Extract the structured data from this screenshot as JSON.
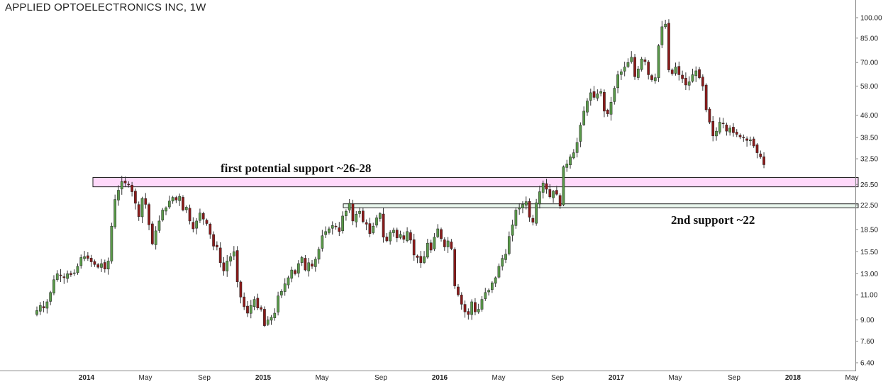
{
  "chart_data": {
    "type": "candlestick",
    "title": "APPLIED OPTOELECTRONICS INC, 1W",
    "y_scale": "log",
    "ylim": [
      6.0,
      110.0
    ],
    "grid": false,
    "y_ticks": [
      "100.00",
      "85.00",
      "70.00",
      "58.00",
      "46.00",
      "38.50",
      "32.50",
      "26.50",
      "22.50",
      "18.50",
      "15.50",
      "13.00",
      "11.00",
      "9.00",
      "7.60",
      "6.40"
    ],
    "x_ticks": [
      {
        "label": "2014",
        "year": true
      },
      {
        "label": "May",
        "year": false
      },
      {
        "label": "Sep",
        "year": false
      },
      {
        "label": "2015",
        "year": true
      },
      {
        "label": "May",
        "year": false
      },
      {
        "label": "Sep",
        "year": false
      },
      {
        "label": "2016",
        "year": true
      },
      {
        "label": "May",
        "year": false
      },
      {
        "label": "Sep",
        "year": false
      },
      {
        "label": "2017",
        "year": true
      },
      {
        "label": "May",
        "year": false
      },
      {
        "label": "Sep",
        "year": false
      },
      {
        "label": "2018",
        "year": true
      },
      {
        "label": "May",
        "year": false
      }
    ],
    "up_color": "#5a9a4a",
    "down_color": "#8b1a1a",
    "support_zones": [
      {
        "label": "first potential support ~26-28",
        "low": 26.0,
        "high": 28.0,
        "fill": "#ffd9fa"
      },
      {
        "label": "2nd support ~22",
        "low": 22.0,
        "high": 22.7,
        "fill": "#e8f5ec"
      }
    ],
    "weekly_closes": [
      9.7,
      10.1,
      9.9,
      10.4,
      11.2,
      12.4,
      13.0,
      12.8,
      12.6,
      13.0,
      12.9,
      13.1,
      13.8,
      14.8,
      14.9,
      14.7,
      14.3,
      14.0,
      13.7,
      14.1,
      13.5,
      14.4,
      19.0,
      23.5,
      25.3,
      27.1,
      26.8,
      26.5,
      25.0,
      22.8,
      20.5,
      23.7,
      22.6,
      19.2,
      16.5,
      18.3,
      19.8,
      21.6,
      22.0,
      23.2,
      23.9,
      23.4,
      24.1,
      21.6,
      22.1,
      19.8,
      18.6,
      19.8,
      21.1,
      20.1,
      19.4,
      17.8,
      16.2,
      16.1,
      14.2,
      13.3,
      14.4,
      14.9,
      15.5,
      12.2,
      10.8,
      10.0,
      9.5,
      10.1,
      10.6,
      9.9,
      9.8,
      8.6,
      9.0,
      9.2,
      9.5,
      10.9,
      11.3,
      12.0,
      12.6,
      13.4,
      13.0,
      14.1,
      14.8,
      13.4,
      14.2,
      13.8,
      14.6,
      15.8,
      17.6,
      18.2,
      18.6,
      19.1,
      18.9,
      18.2,
      20.6,
      21.4,
      22.8,
      19.8,
      20.9,
      21.4,
      19.7,
      19.3,
      17.9,
      19.0,
      20.3,
      21.0,
      17.4,
      16.9,
      18.1,
      18.4,
      17.3,
      17.8,
      17.1,
      18.2,
      17.0,
      15.1,
      14.8,
      14.2,
      14.9,
      16.6,
      15.7,
      17.4,
      18.6,
      17.2,
      16.1,
      16.9,
      15.9,
      11.8,
      11.0,
      10.2,
      9.6,
      9.4,
      10.4,
      9.6,
      9.8,
      10.6,
      11.2,
      11.4,
      12.1,
      12.6,
      13.8,
      14.7,
      15.2,
      17.5,
      19.2,
      21.6,
      22.0,
      22.6,
      23.1,
      20.4,
      19.6,
      22.9,
      25.0,
      26.8,
      25.5,
      24.0,
      25.1,
      24.5,
      22.3,
      30.5,
      31.2,
      33.0,
      34.1,
      37.0,
      42.5,
      47.5,
      51.5,
      55.0,
      53.0,
      54.5,
      55.5,
      47.5,
      46.5,
      51.0,
      57.0,
      63.5,
      65.0,
      67.5,
      70.0,
      73.0,
      62.5,
      66.5,
      72.0,
      70.5,
      63.5,
      61.0,
      62.0,
      80.0,
      93.0,
      95.0,
      66.0,
      64.0,
      67.5,
      63.5,
      61.5,
      58.5,
      60.0,
      63.5,
      65.5,
      62.0,
      58.0,
      48.0,
      43.5,
      39.0,
      40.5,
      43.5,
      43.0,
      40.5,
      41.5,
      40.0,
      39.5,
      38.7,
      38.5,
      37.6,
      37.8,
      36.0,
      34.1,
      33.0,
      31.0
    ]
  },
  "annotations": {
    "first_support": "first potential support ~26-28",
    "second_support": "2nd support ~22"
  }
}
